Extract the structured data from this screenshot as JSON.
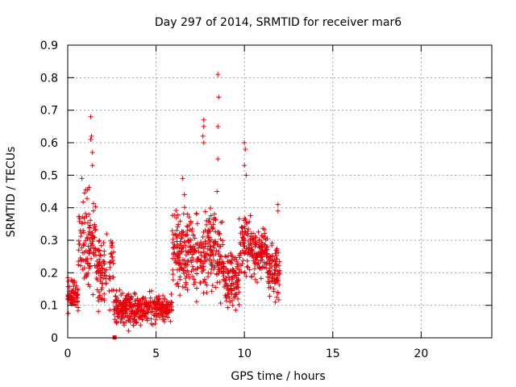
{
  "chart_data": {
    "type": "scatter",
    "title": "Day 297 of 2014, SRMTID for receiver mar6",
    "xlabel": "GPS time / hours",
    "ylabel": "SRMTID / TECUs",
    "xlim": [
      0,
      24
    ],
    "ylim": [
      0,
      0.9
    ],
    "xticks": [
      0,
      5,
      10,
      15,
      20
    ],
    "yticks": [
      0,
      0.1,
      0.2,
      0.3,
      0.4,
      0.5,
      0.6,
      0.7,
      0.8,
      0.9
    ],
    "xtick_labels": [
      "0",
      "5",
      "10",
      "15",
      "20"
    ],
    "ytick_labels": [
      "0",
      "0.1",
      "0.2",
      "0.3",
      "0.4",
      "0.5",
      "0.6",
      "0.7",
      "0.8",
      "0.9"
    ],
    "grid": true,
    "marker": "+",
    "series_color": "#e8000b",
    "series": [
      {
        "name": "SRMTID",
        "note": "approximate envelope of dense point cloud; points generated along these segments",
        "segments": [
          {
            "t0": 0.0,
            "t1": 0.6,
            "n": 70,
            "ylo": 0.06,
            "yhi": 0.21
          },
          {
            "t0": 0.6,
            "t1": 1.6,
            "n": 110,
            "ylo": 0.1,
            "yhi": 0.49
          },
          {
            "t0": 1.6,
            "t1": 2.6,
            "n": 100,
            "ylo": 0.05,
            "yhi": 0.36
          },
          {
            "t0": 2.6,
            "t1": 4.0,
            "n": 180,
            "ylo": 0.02,
            "yhi": 0.16
          },
          {
            "t0": 4.0,
            "t1": 5.9,
            "n": 200,
            "ylo": 0.03,
            "yhi": 0.15
          },
          {
            "t0": 5.9,
            "t1": 7.0,
            "n": 140,
            "ylo": 0.08,
            "yhi": 0.45
          },
          {
            "t0": 7.0,
            "t1": 8.8,
            "n": 200,
            "ylo": 0.07,
            "yhi": 0.45
          },
          {
            "t0": 8.8,
            "t1": 9.7,
            "n": 110,
            "ylo": 0.06,
            "yhi": 0.3
          },
          {
            "t0": 9.7,
            "t1": 10.5,
            "n": 90,
            "ylo": 0.12,
            "yhi": 0.45
          },
          {
            "t0": 10.5,
            "t1": 11.3,
            "n": 100,
            "ylo": 0.16,
            "yhi": 0.36
          },
          {
            "t0": 11.3,
            "t1": 12.0,
            "n": 90,
            "ylo": 0.09,
            "yhi": 0.32
          }
        ],
        "peaks": [
          {
            "x": 1.3,
            "y": 0.68
          },
          {
            "x": 1.35,
            "y": 0.62
          },
          {
            "x": 1.4,
            "y": 0.57
          },
          {
            "x": 1.4,
            "y": 0.53
          },
          {
            "x": 1.3,
            "y": 0.61
          },
          {
            "x": 0.8,
            "y": 0.49
          },
          {
            "x": 7.7,
            "y": 0.67
          },
          {
            "x": 7.7,
            "y": 0.65
          },
          {
            "x": 7.65,
            "y": 0.62
          },
          {
            "x": 7.7,
            "y": 0.6
          },
          {
            "x": 8.5,
            "y": 0.81
          },
          {
            "x": 8.55,
            "y": 0.74
          },
          {
            "x": 8.5,
            "y": 0.65
          },
          {
            "x": 8.5,
            "y": 0.55
          },
          {
            "x": 8.45,
            "y": 0.45
          },
          {
            "x": 10.0,
            "y": 0.6
          },
          {
            "x": 10.05,
            "y": 0.58
          },
          {
            "x": 10.0,
            "y": 0.53
          },
          {
            "x": 10.1,
            "y": 0.5
          },
          {
            "x": 6.6,
            "y": 0.44
          },
          {
            "x": 6.5,
            "y": 0.49
          },
          {
            "x": 11.9,
            "y": 0.41
          },
          {
            "x": 11.9,
            "y": 0.39
          }
        ]
      }
    ],
    "outliers": [
      {
        "x": 2.65,
        "y": 0.0
      }
    ]
  }
}
